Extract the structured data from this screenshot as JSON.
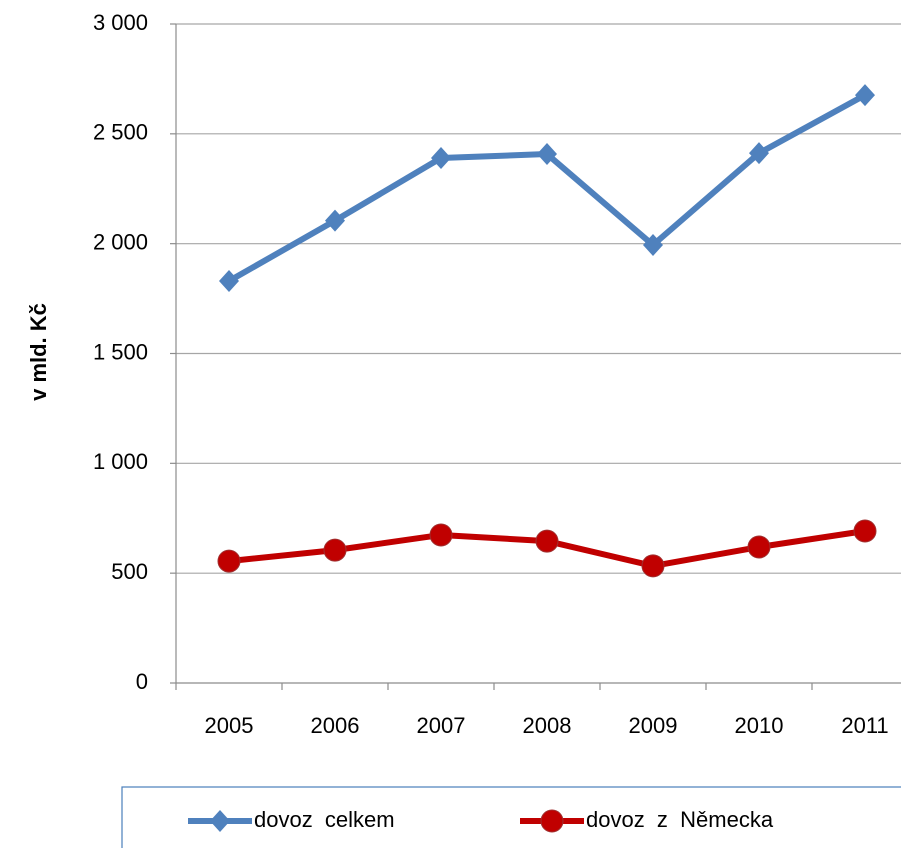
{
  "chart_data": {
    "type": "line",
    "y_label": "v mld. Kč",
    "categories": [
      "2005",
      "2006",
      "2007",
      "2008",
      "2009",
      "2010",
      "2011"
    ],
    "series": [
      {
        "name": "dovoz  celkem",
        "color": "#4f81bd",
        "marker": "diamond",
        "values": [
          1830,
          2105,
          2390,
          2408,
          1994,
          2412,
          2676
        ]
      },
      {
        "name": "dovoz  z  Německa",
        "color": "#c00000",
        "marker": "circle",
        "values": [
          555,
          605,
          674,
          646,
          533,
          619,
          692
        ]
      }
    ],
    "ylim": [
      0,
      3000
    ],
    "yticks": [
      0,
      500,
      {
        "value": 1000,
        "label": "1 000"
      },
      {
        "value": 1500,
        "label": "1 500"
      },
      {
        "value": 2000,
        "label": "2 000"
      },
      {
        "value": 2500,
        "label": "2 500"
      },
      {
        "value": 3000,
        "label": "3 000"
      }
    ],
    "grid": true,
    "legend": "bottom"
  }
}
